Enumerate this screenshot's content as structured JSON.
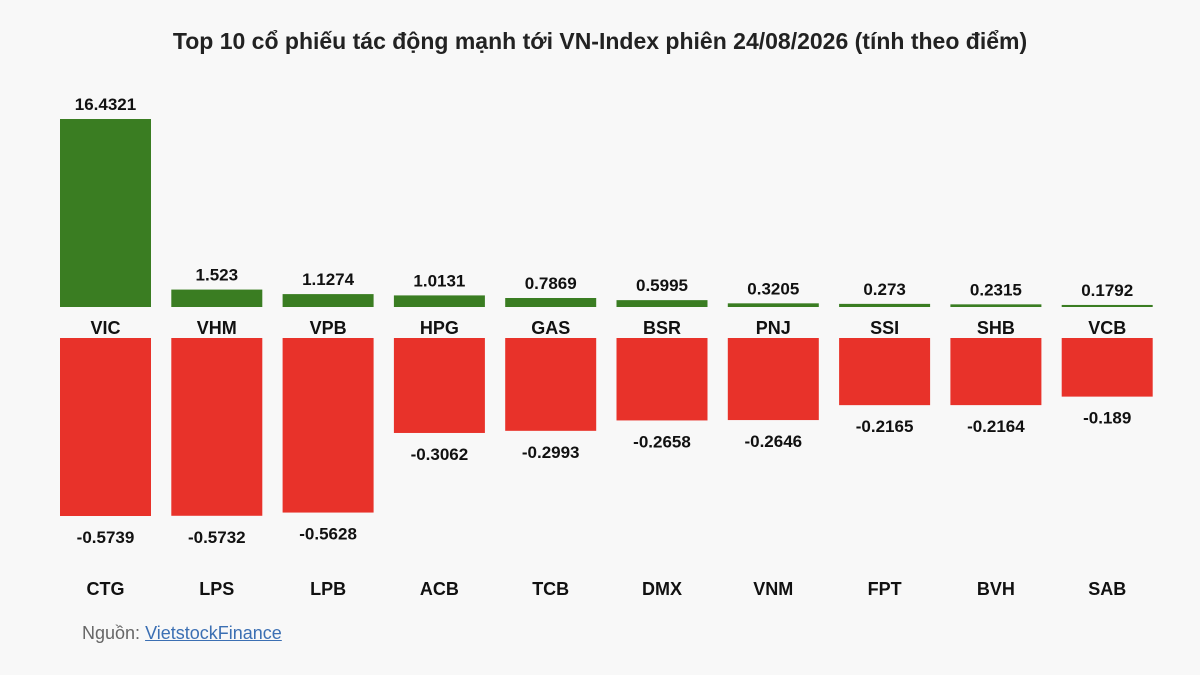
{
  "title": "Top 10 cổ phiếu tác động mạnh tới VN-Index phiên 24/08/2026 (tính theo điểm)",
  "source_label": "Nguồn:",
  "source_link": "VietstockFinance",
  "colors": {
    "positive": "#3a7d22",
    "negative": "#e8322a"
  },
  "chart_data": [
    {
      "type": "bar",
      "title": "Top 10 cổ phiếu tác động mạnh tới VN-Index phiên 24/08/2026 (tính theo điểm)",
      "series_role": "positive",
      "categories": [
        "VIC",
        "VHM",
        "VPB",
        "HPG",
        "GAS",
        "BSR",
        "PNJ",
        "SSI",
        "SHB",
        "VCB"
      ],
      "values": [
        16.4321,
        1.523,
        1.1274,
        1.0131,
        0.7869,
        0.5995,
        0.3205,
        0.273,
        0.2315,
        0.1792
      ],
      "value_labels": [
        "16.4321",
        "1.523",
        "1.1274",
        "1.0131",
        "0.7869",
        "0.5995",
        "0.3205",
        "0.273",
        "0.2315",
        "0.1792"
      ],
      "color": "#3a7d22"
    },
    {
      "type": "bar",
      "series_role": "negative",
      "categories": [
        "CTG",
        "LPS",
        "LPB",
        "ACB",
        "TCB",
        "DMX",
        "VNM",
        "FPT",
        "BVH",
        "SAB"
      ],
      "values": [
        -0.5739,
        -0.5732,
        -0.5628,
        -0.3062,
        -0.2993,
        -0.2658,
        -0.2646,
        -0.2165,
        -0.2164,
        -0.189
      ],
      "value_labels": [
        "-0.5739",
        "-0.5732",
        "-0.5628",
        "-0.3062",
        "-0.2993",
        "-0.2658",
        "-0.2646",
        "-0.2165",
        "-0.2164",
        "-0.189"
      ],
      "color": "#e8322a"
    }
  ]
}
